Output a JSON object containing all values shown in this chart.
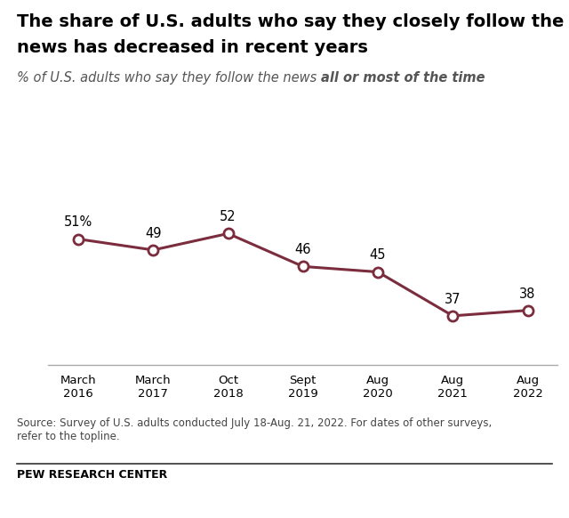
{
  "title_line1": "The share of U.S. adults who say they closely follow the",
  "title_line2": "news has decreased in recent years",
  "subtitle_regular": "% of U.S. adults who say they follow the news ",
  "subtitle_bold": "all or most of the time",
  "x_labels": [
    "March\n2016",
    "March\n2017",
    "Oct\n2018",
    "Sept\n2019",
    "Aug\n2020",
    "Aug\n2021",
    "Aug\n2022"
  ],
  "values": [
    51,
    49,
    52,
    46,
    45,
    37,
    38
  ],
  "value_labels": [
    "51%",
    "49",
    "52",
    "46",
    "45",
    "37",
    "38"
  ],
  "line_color": "#7b2d3e",
  "marker_face_color": "#ffffff",
  "marker_edge_color": "#7b2d3e",
  "source_text": "Source: Survey of U.S. adults conducted July 18-Aug. 21, 2022. For dates of other surveys,\nrefer to the topline.",
  "footer_text": "PEW RESEARCH CENTER",
  "background_color": "#ffffff",
  "title_fontsize": 14,
  "subtitle_fontsize": 10.5,
  "tick_fontsize": 9.5,
  "label_fontsize": 10.5,
  "source_fontsize": 8.5,
  "footer_fontsize": 9
}
